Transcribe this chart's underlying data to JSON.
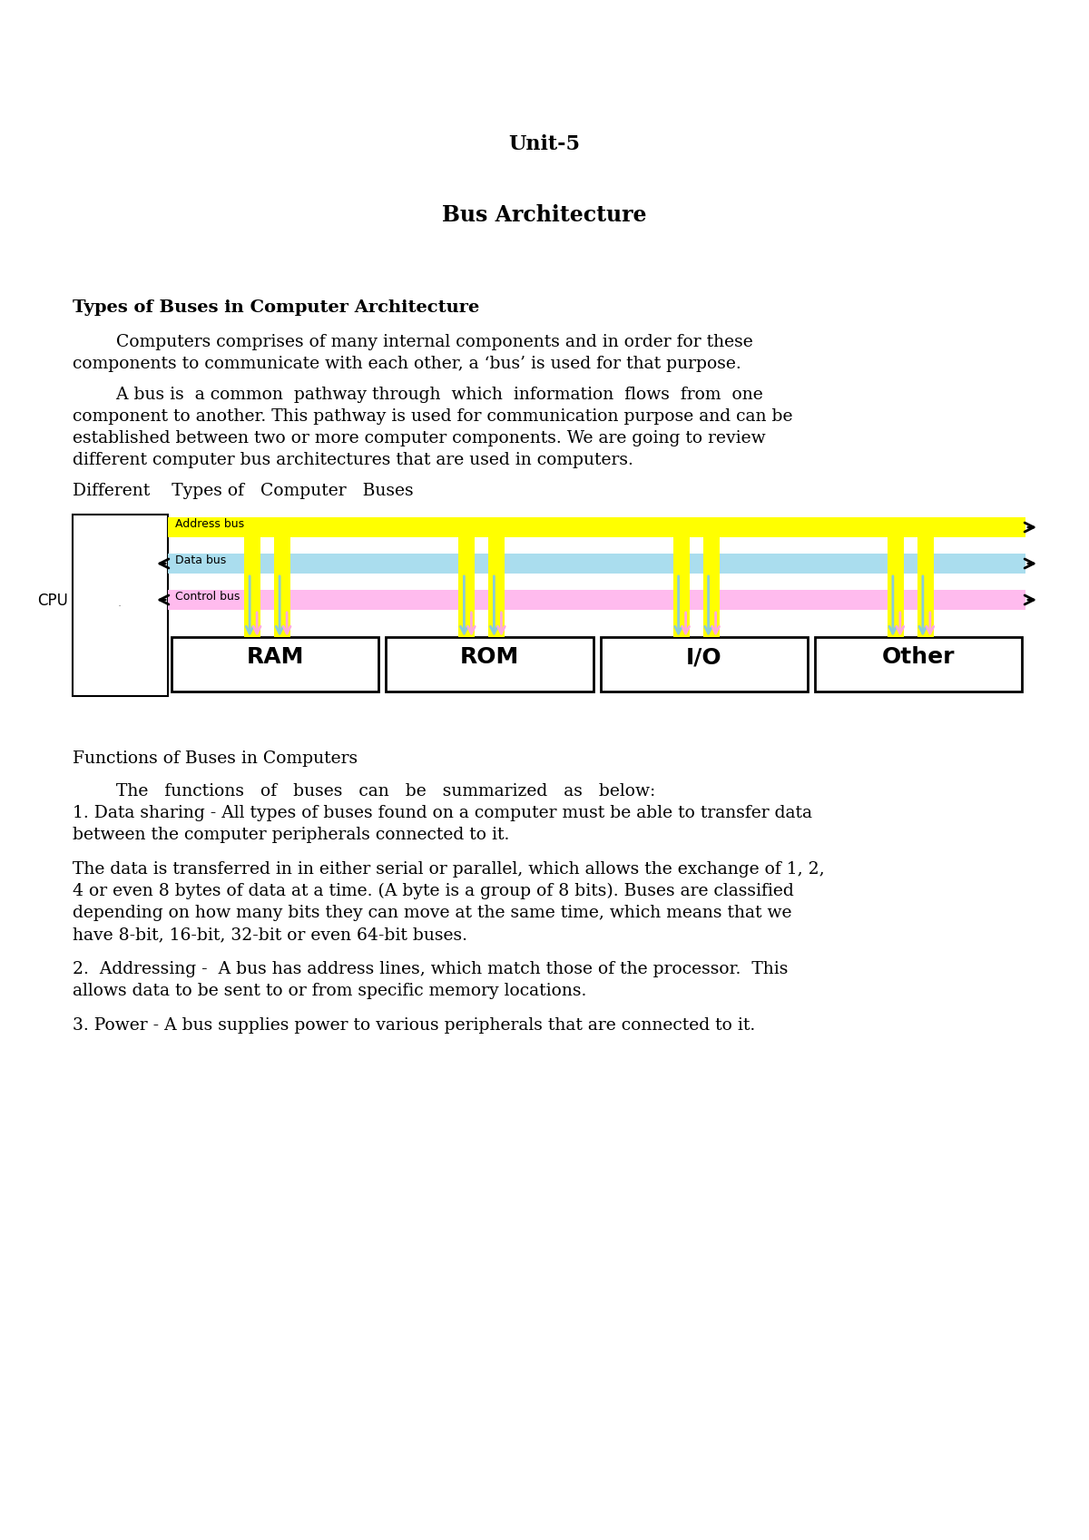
{
  "title1": "Unit-5",
  "title2": "Bus Architecture",
  "section1_heading": "Types of Buses in Computer Architecture",
  "para1_line1": "        Computers comprises of many internal components and in order for these",
  "para1_line2": "components to communicate with each other, a ‘bus’ is used for that purpose.",
  "para2_line1": "        A bus is  a common  pathway through  which  information  flows  from  one",
  "para2_line2": "component to another. This pathway is used for communication purpose and can be",
  "para2_line3": "established between two or more computer components. We are going to review",
  "para2_line4": "different computer bus architectures that are used in computers.",
  "diff_types": "Different    Types of   Computer   Buses",
  "section2_heading": "Functions of Buses in Computers",
  "para3_line1": "        The   functions   of   buses   can   be   summarized   as   below:",
  "para3_line2": "1. Data sharing - All types of buses found on a computer must be able to transfer data",
  "para3_line3": "between the computer peripherals connected to it.",
  "para4_line1": "The data is transferred in in either serial or parallel, which allows the exchange of 1, 2,",
  "para4_line2": "4 or even 8 bytes of data at a time. (A byte is a group of 8 bits). Buses are classified",
  "para4_line3": "depending on how many bits they can move at the same time, which means that we",
  "para4_line4": "have 8-bit, 16-bit, 32-bit or even 64-bit buses.",
  "para5_line1": "2.  Addressing -  A bus has address lines, which match those of the processor.  This",
  "para5_line2": "allows data to be sent to or from specific memory locations.",
  "para6": "3. Power - A bus supplies power to various peripherals that are connected to it.",
  "bg_color": "#ffffff",
  "address_bus_color": "#ffff00",
  "data_bus_color": "#aaddee",
  "control_bus_color": "#ffbbee",
  "yellow_bar_color": "#ffff00",
  "cyan_arrow_color": "#88ccdd",
  "pink_arrow_color": "#ffaadd"
}
